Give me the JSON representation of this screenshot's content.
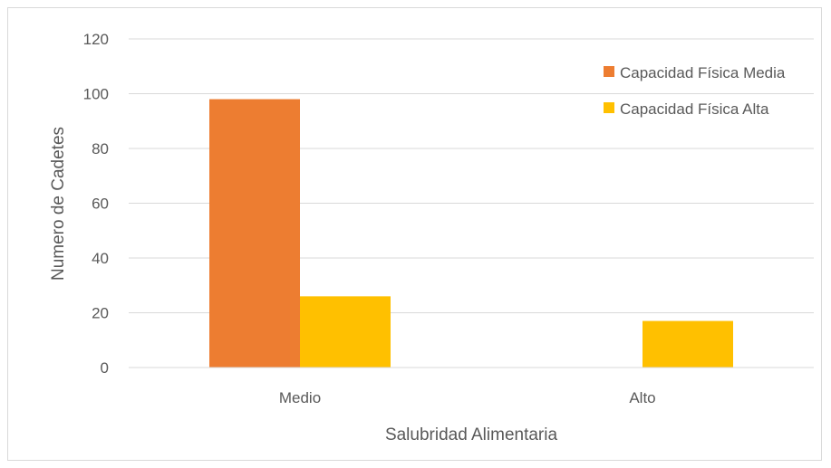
{
  "chart_data": {
    "type": "bar",
    "title": "",
    "xlabel": "Salubridad Alimentaria",
    "ylabel": "Numero de Cadetes",
    "categories": [
      "Medio",
      "Alto"
    ],
    "ylim": [
      0,
      120
    ],
    "yticks": [
      0,
      20,
      40,
      60,
      80,
      100,
      120
    ],
    "grid": true,
    "legend_position": "top-right",
    "series": [
      {
        "name": "Capacidad Física Media",
        "values": [
          98,
          0
        ],
        "color": "#ED7D31"
      },
      {
        "name": "Capacidad Física Alta",
        "values": [
          26,
          17
        ],
        "color": "#FFC000"
      }
    ]
  }
}
